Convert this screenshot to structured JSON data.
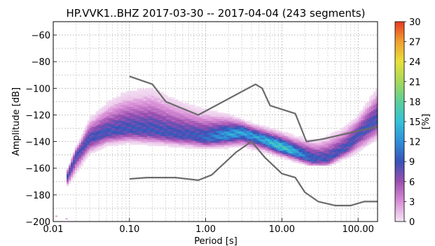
{
  "chart_data": {
    "type": "heatmap",
    "title": "HP.VVK1..BHZ   2017-03-30 -- 2017-04-04  (243 segments)",
    "xlabel": "Period [s]",
    "ylabel": "Amplitude [dB]",
    "x_scale": "log",
    "xlim": [
      0.01,
      180
    ],
    "ylim": [
      -200,
      -50
    ],
    "grid": true,
    "x_ticks": [
      {
        "value": 0.01,
        "label": "0.01"
      },
      {
        "value": 0.1,
        "label": "0.10"
      },
      {
        "value": 1,
        "label": "1.00"
      },
      {
        "value": 10,
        "label": "10.00"
      },
      {
        "value": 100,
        "label": "100.00"
      }
    ],
    "y_ticks": [
      {
        "value": -60,
        "label": "−60"
      },
      {
        "value": -80,
        "label": "−80"
      },
      {
        "value": -100,
        "label": "−100"
      },
      {
        "value": -120,
        "label": "−120"
      },
      {
        "value": -140,
        "label": "−140"
      },
      {
        "value": -160,
        "label": "−160"
      },
      {
        "value": -180,
        "label": "−180"
      },
      {
        "value": -200,
        "label": "−200"
      }
    ],
    "colorbar": {
      "label": "[%]",
      "min": 0,
      "max": 30,
      "ticks": [
        {
          "value": 0,
          "label": "0"
        },
        {
          "value": 3,
          "label": "3"
        },
        {
          "value": 6,
          "label": "6"
        },
        {
          "value": 9,
          "label": "9"
        },
        {
          "value": 12,
          "label": "12"
        },
        {
          "value": 15,
          "label": "15"
        },
        {
          "value": 18,
          "label": "18"
        },
        {
          "value": 21,
          "label": "21"
        },
        {
          "value": 24,
          "label": "24"
        },
        {
          "value": 27,
          "label": "27"
        },
        {
          "value": 30,
          "label": "30"
        }
      ],
      "colors": [
        "#f5e6f5",
        "#d98fd6",
        "#9b4fb0",
        "#3a52b8",
        "#2f8fd8",
        "#35c2d8",
        "#5ccf9a",
        "#a6d85a",
        "#e8e03c",
        "#f0a030",
        "#e83a22"
      ]
    },
    "series": [
      {
        "role": "noise-model",
        "color": "#6b6b6b",
        "points": [
          [
            0.1,
            -91
          ],
          [
            0.2,
            -97
          ],
          [
            0.3,
            -110
          ],
          [
            0.8,
            -120
          ],
          [
            4.5,
            -97
          ],
          [
            5.5,
            -100
          ],
          [
            7,
            -113
          ],
          [
            15,
            -119
          ],
          [
            21,
            -140
          ],
          [
            35,
            -138
          ],
          [
            100,
            -132
          ],
          [
            180,
            -129
          ]
        ]
      },
      {
        "role": "noise-model",
        "color": "#6b6b6b",
        "points": [
          [
            0.1,
            -168
          ],
          [
            0.17,
            -167
          ],
          [
            0.4,
            -167
          ],
          [
            0.8,
            -169
          ],
          [
            1.2,
            -165
          ],
          [
            2.5,
            -148
          ],
          [
            4,
            -140
          ],
          [
            6,
            -152
          ],
          [
            10,
            -164
          ],
          [
            15,
            -167
          ],
          [
            20,
            -178
          ],
          [
            30,
            -185
          ],
          [
            50,
            -188
          ],
          [
            80,
            -188
          ],
          [
            120,
            -185
          ],
          [
            180,
            -185
          ]
        ]
      }
    ],
    "density": {
      "center_curve": [
        [
          0.015,
          -168
        ],
        [
          0.02,
          -150
        ],
        [
          0.03,
          -138
        ],
        [
          0.05,
          -133
        ],
        [
          0.1,
          -131
        ],
        [
          0.2,
          -132
        ],
        [
          0.4,
          -135
        ],
        [
          0.7,
          -136
        ],
        [
          1,
          -138
        ],
        [
          1.6,
          -136
        ],
        [
          3,
          -133
        ],
        [
          5,
          -137
        ],
        [
          8,
          -142
        ],
        [
          15,
          -148
        ],
        [
          25,
          -153
        ],
        [
          40,
          -153
        ],
        [
          70,
          -145
        ],
        [
          100,
          -135
        ],
        [
          180,
          -123
        ]
      ],
      "upper_envelope": [
        [
          0.015,
          -162
        ],
        [
          0.03,
          -120
        ],
        [
          0.05,
          -108
        ],
        [
          0.08,
          -100
        ],
        [
          0.1,
          -98
        ],
        [
          0.2,
          -95
        ],
        [
          0.4,
          -104
        ],
        [
          0.8,
          -112
        ],
        [
          2,
          -118
        ],
        [
          4,
          -125
        ],
        [
          8,
          -130
        ],
        [
          15,
          -135
        ],
        [
          30,
          -137
        ],
        [
          60,
          -128
        ],
        [
          100,
          -118
        ],
        [
          180,
          -96
        ]
      ],
      "lower_envelope": [
        [
          0.015,
          -175
        ],
        [
          0.03,
          -150
        ],
        [
          0.05,
          -144
        ],
        [
          0.1,
          -142
        ],
        [
          0.3,
          -144
        ],
        [
          1,
          -146
        ],
        [
          3,
          -144
        ],
        [
          6,
          -148
        ],
        [
          10,
          -152
        ],
        [
          20,
          -156
        ],
        [
          40,
          -157
        ],
        [
          80,
          -152
        ],
        [
          180,
          -140
        ]
      ]
    },
    "outliers": [
      [
        0.015,
        -198
      ],
      [
        0.011,
        -196
      ]
    ]
  }
}
